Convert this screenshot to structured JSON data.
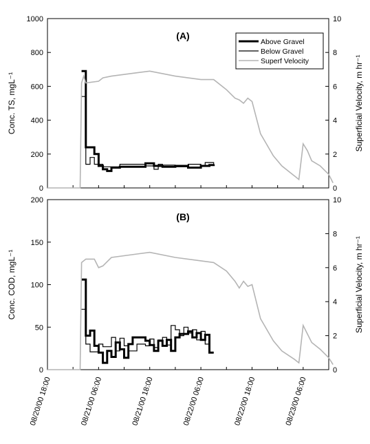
{
  "chart_data": [
    {
      "type": "line",
      "panel_label": "(A)",
      "ylabel_left": "Conc. TS, mgL⁻¹",
      "ylabel_right": "Superficial Velocity, m hr⁻¹",
      "ylim_left": [
        0,
        1000
      ],
      "ylim_right": [
        0,
        10
      ],
      "yticks_left": [
        "0",
        "200",
        "400",
        "600",
        "800",
        "1000"
      ],
      "yticks_right": [
        "0",
        "2",
        "4",
        "6",
        "8",
        "10"
      ],
      "legend_placement": "top-right",
      "legend": [
        "Above Gravel",
        "Below Gravel",
        "Superf Velocity"
      ],
      "grid": false,
      "series": [
        {
          "name": "Above Gravel",
          "axis": "left",
          "style": "step",
          "color": "#000000",
          "points": [
            [
              "08/21/00 02:00",
              690
            ],
            [
              "08/21/00 03:00",
              240
            ],
            [
              "08/21/00 05:00",
              200
            ],
            [
              "08/21/00 06:00",
              130
            ],
            [
              "08/21/00 07:00",
              110
            ],
            [
              "08/21/00 08:00",
              100
            ],
            [
              "08/21/00 09:00",
              120
            ],
            [
              "08/21/00 11:00",
              125
            ],
            [
              "08/21/00 17:00",
              145
            ],
            [
              "08/21/00 19:00",
              130
            ],
            [
              "08/21/00 21:00",
              125
            ],
            [
              "08/22/00 00:00",
              130
            ],
            [
              "08/22/00 03:00",
              120
            ],
            [
              "08/22/00 06:00",
              130
            ],
            [
              "08/22/00 08:00",
              135
            ],
            [
              "08/22/00 09:00",
              140
            ]
          ]
        },
        {
          "name": "Below Gravel",
          "axis": "left",
          "style": "step",
          "color": "#000000",
          "points": [
            [
              "08/21/00 02:00",
              540
            ],
            [
              "08/21/00 03:00",
              140
            ],
            [
              "08/21/00 04:00",
              180
            ],
            [
              "08/21/00 05:00",
              140
            ],
            [
              "08/21/00 07:00",
              125
            ],
            [
              "08/21/00 11:00",
              140
            ],
            [
              "08/21/00 17:00",
              130
            ],
            [
              "08/21/00 19:00",
              110
            ],
            [
              "08/21/00 20:00",
              140
            ],
            [
              "08/21/00 21:00",
              135
            ],
            [
              "08/22/00 00:00",
              125
            ],
            [
              "08/22/00 03:00",
              140
            ],
            [
              "08/22/00 06:00",
              130
            ],
            [
              "08/22/00 07:00",
              150
            ],
            [
              "08/22/00 09:00",
              140
            ]
          ]
        },
        {
          "name": "Superf Velocity",
          "axis": "right",
          "style": "line",
          "color": "#b4b4b4",
          "points": [
            [
              "08/20/00 18:00",
              0
            ],
            [
              "08/21/00 01:40",
              0
            ],
            [
              "08/21/00 02:00",
              6.2
            ],
            [
              "08/21/00 02:30",
              6.6
            ],
            [
              "08/21/00 03:00",
              6.2
            ],
            [
              "08/21/00 06:00",
              6.3
            ],
            [
              "08/21/00 07:00",
              6.5
            ],
            [
              "08/21/00 09:00",
              6.6
            ],
            [
              "08/21/00 15:00",
              6.8
            ],
            [
              "08/21/00 18:00",
              6.9
            ],
            [
              "08/22/00 00:00",
              6.6
            ],
            [
              "08/22/00 06:00",
              6.4
            ],
            [
              "08/22/00 09:00",
              6.4
            ],
            [
              "08/22/00 12:00",
              5.8
            ],
            [
              "08/22/00 14:00",
              5.3
            ],
            [
              "08/22/00 15:00",
              5.2
            ],
            [
              "08/22/00 16:00",
              5.0
            ],
            [
              "08/22/00 17:00",
              5.3
            ],
            [
              "08/22/00 18:00",
              5.1
            ],
            [
              "08/22/00 20:00",
              3.2
            ],
            [
              "08/22/00 23:00",
              1.9
            ],
            [
              "08/23/00 01:00",
              1.3
            ],
            [
              "08/23/00 04:00",
              0.7
            ],
            [
              "08/23/00 05:00",
              0.5
            ],
            [
              "08/23/00 06:00",
              2.6
            ],
            [
              "08/23/00 07:00",
              2.2
            ],
            [
              "08/23/00 08:00",
              1.6
            ],
            [
              "08/23/00 10:00",
              1.3
            ],
            [
              "08/23/00 12:00",
              0.8
            ],
            [
              "08/23/00 13:00",
              0.3
            ]
          ]
        }
      ]
    },
    {
      "type": "line",
      "panel_label": "(B)",
      "ylabel_left": "Conc. COD, mgL⁻¹",
      "ylabel_right": "Superficial Velocity, m hr⁻¹",
      "ylim_left": [
        0,
        200
      ],
      "ylim_right": [
        0,
        10
      ],
      "yticks_left": [
        "0",
        "50",
        "100",
        "150",
        "200"
      ],
      "yticks_right": [
        "0",
        "2",
        "4",
        "6",
        "8",
        "10"
      ],
      "x_ticks": [
        "08/20/00 18:00",
        "08/21/00 06:00",
        "08/21/00 18:00",
        "08/22/00 06:00",
        "08/22/00 18:00",
        "08/23/00 06:00"
      ],
      "grid": false,
      "series": [
        {
          "name": "Above Gravel",
          "axis": "left",
          "style": "step",
          "color": "#000000",
          "points": [
            [
              "08/21/00 02:00",
              106
            ],
            [
              "08/21/00 03:00",
              40
            ],
            [
              "08/21/00 04:00",
              46
            ],
            [
              "08/21/00 05:00",
              28
            ],
            [
              "08/21/00 06:00",
              20
            ],
            [
              "08/21/00 07:00",
              8
            ],
            [
              "08/21/00 08:00",
              22
            ],
            [
              "08/21/00 09:00",
              15
            ],
            [
              "08/21/00 10:00",
              32
            ],
            [
              "08/21/00 11:00",
              24
            ],
            [
              "08/21/00 12:00",
              14
            ],
            [
              "08/21/00 13:00",
              30
            ],
            [
              "08/21/00 14:00",
              38
            ],
            [
              "08/21/00 17:00",
              34
            ],
            [
              "08/21/00 18:00",
              29
            ],
            [
              "08/21/00 19:00",
              22
            ],
            [
              "08/21/00 20:00",
              34
            ],
            [
              "08/21/00 21:00",
              28
            ],
            [
              "08/21/00 22:00",
              35
            ],
            [
              "08/21/00 23:00",
              22
            ],
            [
              "08/22/00 00:00",
              38
            ],
            [
              "08/22/00 01:00",
              42
            ],
            [
              "08/22/00 03:00",
              45
            ],
            [
              "08/22/00 04:00",
              38
            ],
            [
              "08/22/00 05:00",
              43
            ],
            [
              "08/22/00 06:00",
              35
            ],
            [
              "08/22/00 07:00",
              41
            ],
            [
              "08/22/00 08:00",
              20
            ],
            [
              "08/22/00 09:00",
              20
            ]
          ]
        },
        {
          "name": "Below Gravel",
          "axis": "left",
          "style": "step",
          "color": "#000000",
          "points": [
            [
              "08/21/00 02:00",
              71
            ],
            [
              "08/21/00 03:00",
              30
            ],
            [
              "08/21/00 04:00",
              21
            ],
            [
              "08/21/00 06:00",
              30
            ],
            [
              "08/21/00 07:00",
              27
            ],
            [
              "08/21/00 09:00",
              38
            ],
            [
              "08/21/00 10:00",
              22
            ],
            [
              "08/21/00 11:00",
              37
            ],
            [
              "08/21/00 12:00",
              28
            ],
            [
              "08/21/00 13:00",
              22
            ],
            [
              "08/21/00 15:00",
              30
            ],
            [
              "08/21/00 17:00",
              28
            ],
            [
              "08/21/00 18:00",
              36
            ],
            [
              "08/21/00 19:00",
              26
            ],
            [
              "08/21/00 20:00",
              35
            ],
            [
              "08/21/00 21:00",
              38
            ],
            [
              "08/21/00 22:00",
              29
            ],
            [
              "08/21/00 23:00",
              52
            ],
            [
              "08/22/00 00:00",
              47
            ],
            [
              "08/22/00 01:00",
              40
            ],
            [
              "08/22/00 02:00",
              50
            ],
            [
              "08/22/00 03:00",
              43
            ],
            [
              "08/22/00 04:00",
              47
            ],
            [
              "08/22/00 05:00",
              35
            ],
            [
              "08/22/00 06:00",
              45
            ],
            [
              "08/22/00 07:00",
              30
            ],
            [
              "08/22/00 08:00",
              20
            ],
            [
              "08/22/00 09:00",
              20
            ]
          ]
        },
        {
          "name": "Superf Velocity",
          "axis": "right",
          "style": "line",
          "color": "#b4b4b4",
          "points": [
            [
              "08/20/00 18:00",
              0
            ],
            [
              "08/21/00 01:40",
              0
            ],
            [
              "08/21/00 02:00",
              6.3
            ],
            [
              "08/21/00 03:00",
              6.5
            ],
            [
              "08/21/00 05:00",
              6.5
            ],
            [
              "08/21/00 06:00",
              6.0
            ],
            [
              "08/21/00 07:00",
              6.1
            ],
            [
              "08/21/00 09:00",
              6.6
            ],
            [
              "08/21/00 15:00",
              6.8
            ],
            [
              "08/21/00 18:00",
              6.9
            ],
            [
              "08/22/00 00:00",
              6.6
            ],
            [
              "08/22/00 06:00",
              6.4
            ],
            [
              "08/22/00 09:00",
              6.3
            ],
            [
              "08/22/00 12:00",
              5.8
            ],
            [
              "08/22/00 14:00",
              5.2
            ],
            [
              "08/22/00 15:00",
              4.8
            ],
            [
              "08/22/00 16:00",
              5.2
            ],
            [
              "08/22/00 17:00",
              4.9
            ],
            [
              "08/22/00 18:00",
              5.0
            ],
            [
              "08/22/00 20:00",
              3.0
            ],
            [
              "08/22/00 23:00",
              1.7
            ],
            [
              "08/23/00 01:00",
              1.1
            ],
            [
              "08/23/00 04:00",
              0.6
            ],
            [
              "08/23/00 05:00",
              0.4
            ],
            [
              "08/23/00 06:00",
              2.6
            ],
            [
              "08/23/00 07:00",
              2.1
            ],
            [
              "08/23/00 08:00",
              1.6
            ],
            [
              "08/23/00 10:00",
              1.2
            ],
            [
              "08/23/00 12:00",
              0.7
            ],
            [
              "08/23/00 13:00",
              0.3
            ]
          ]
        }
      ]
    }
  ]
}
